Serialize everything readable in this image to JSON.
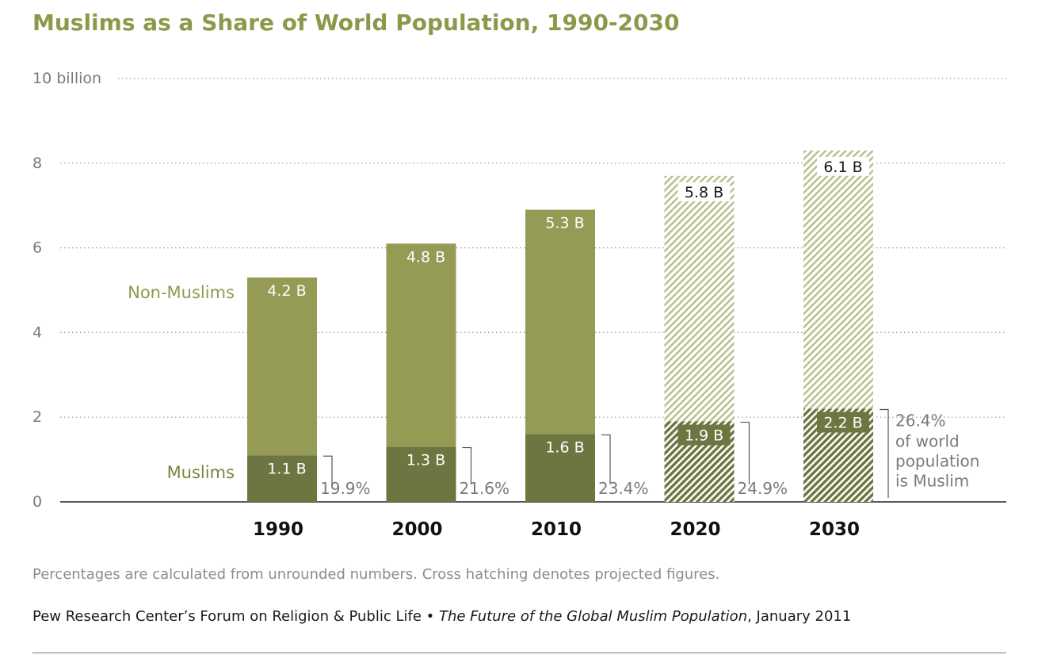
{
  "chart_data": {
    "type": "bar",
    "stacked": true,
    "title": "Muslims as a Share of World Population, 1990-2030",
    "categories": [
      "1990",
      "2000",
      "2010",
      "2020",
      "2030"
    ],
    "projected": [
      false,
      false,
      false,
      true,
      true
    ],
    "ylim": [
      0,
      10
    ],
    "yticks": [
      {
        "value": 0,
        "label": "0"
      },
      {
        "value": 2,
        "label": "2"
      },
      {
        "value": 4,
        "label": "4"
      },
      {
        "value": 6,
        "label": "6"
      },
      {
        "value": 8,
        "label": "8"
      },
      {
        "value": 10,
        "label": "10 billion"
      }
    ],
    "grid": true,
    "series": [
      {
        "name": "Muslims",
        "values": [
          1.1,
          1.3,
          1.6,
          1.9,
          2.2
        ],
        "labels": [
          "1.1 B",
          "1.3 B",
          "1.6 B",
          "1.9 B",
          "2.2 B"
        ],
        "color": "#6d7540"
      },
      {
        "name": "Non-Muslims",
        "values": [
          4.2,
          4.8,
          5.3,
          5.8,
          6.1
        ],
        "labels": [
          "4.2 B",
          "4.8 B",
          "5.3 B",
          "5.8 B",
          "6.1 B"
        ],
        "color": "#959b54"
      }
    ],
    "percent_labels": [
      "19.9%",
      "21.6%",
      "23.4%",
      "24.9%",
      "26.4%"
    ],
    "final_annotation_lines": [
      "of world",
      "population",
      "is Muslim"
    ]
  },
  "note": "Percentages are calculated from unrounded numbers. Cross hatching denotes projected figures.",
  "source": {
    "org": "Pew Research Center’s Forum on Religion & Public Life",
    "sep": " • ",
    "report": "The Future of the Global Muslim Population",
    "date": ", January 2011"
  },
  "colors": {
    "title": "#8a9a4a",
    "muslim": "#6d7540",
    "non_muslim": "#959b54",
    "muslim_label": "#7a8440",
    "non_muslim_label": "#8f9a4e",
    "hatch_light": "#b9bd8a",
    "hatch_dark": "#6d7540",
    "axis_text": "#7a7a7a",
    "gridline": "#9a9a9a"
  }
}
